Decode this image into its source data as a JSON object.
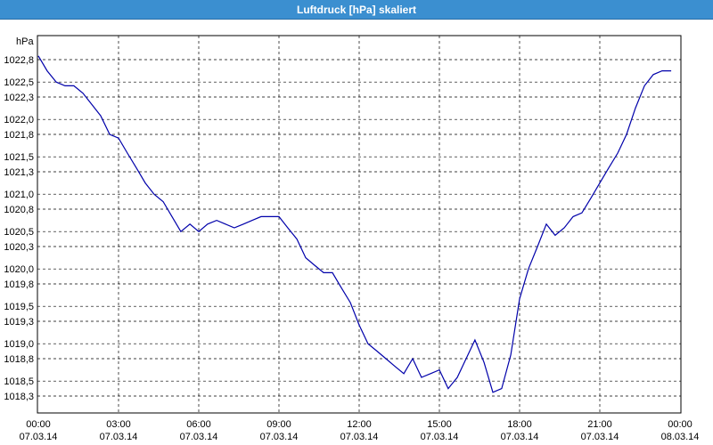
{
  "window": {
    "title": "Luftdruck [hPa] skaliert"
  },
  "chart_data": {
    "type": "line",
    "title": "Luftdruck [hPa] skaliert",
    "ylabel": "hPa",
    "xlabel": "",
    "ylim": [
      1018.0,
      1023.0
    ],
    "grid": true,
    "x_unit": "hours since 07.03.14 00:00",
    "xlim": [
      0,
      24
    ],
    "y_ticks": [
      "1022,8",
      "1022,5",
      "1022,3",
      "1022,0",
      "1021,8",
      "1021,5",
      "1021,3",
      "1021,0",
      "1020,8",
      "1020,5",
      "1020,3",
      "1020,0",
      "1019,8",
      "1019,5",
      "1019,3",
      "1019,0",
      "1018,8",
      "1018,5",
      "1018,3"
    ],
    "y_tick_values": [
      1022.8,
      1022.5,
      1022.3,
      1022.0,
      1021.8,
      1021.5,
      1021.3,
      1021.0,
      1020.8,
      1020.5,
      1020.3,
      1020.0,
      1019.8,
      1019.5,
      1019.3,
      1019.0,
      1018.8,
      1018.5,
      1018.3
    ],
    "x_ticks": [
      {
        "time": "00:00",
        "date": "07.03.14",
        "hour": 0
      },
      {
        "time": "03:00",
        "date": "07.03.14",
        "hour": 3
      },
      {
        "time": "06:00",
        "date": "07.03.14",
        "hour": 6
      },
      {
        "time": "09:00",
        "date": "07.03.14",
        "hour": 9
      },
      {
        "time": "12:00",
        "date": "07.03.14",
        "hour": 12
      },
      {
        "time": "15:00",
        "date": "07.03.14",
        "hour": 15
      },
      {
        "time": "18:00",
        "date": "07.03.14",
        "hour": 18
      },
      {
        "time": "21:00",
        "date": "07.03.14",
        "hour": 21
      },
      {
        "time": "00:00",
        "date": "08.03.14",
        "hour": 24
      }
    ],
    "series": [
      {
        "name": "",
        "color": "#0000aa",
        "x": [
          0.0,
          0.33,
          0.67,
          1.0,
          1.33,
          1.67,
          2.0,
          2.33,
          2.67,
          3.0,
          3.33,
          3.67,
          4.0,
          4.33,
          4.67,
          5.0,
          5.33,
          5.67,
          6.0,
          6.33,
          6.67,
          7.0,
          7.33,
          7.67,
          8.0,
          8.33,
          8.67,
          9.0,
          9.33,
          9.67,
          10.0,
          10.33,
          10.67,
          11.0,
          11.33,
          11.67,
          12.0,
          12.33,
          12.67,
          13.0,
          13.33,
          13.67,
          14.0,
          14.33,
          14.67,
          15.0,
          15.33,
          15.67,
          16.0,
          16.33,
          16.67,
          17.0,
          17.33,
          17.67,
          18.0,
          18.33,
          18.67,
          19.0,
          19.33,
          19.67,
          20.0,
          20.33,
          20.67,
          21.0,
          21.33,
          21.67,
          22.0,
          22.33,
          22.67,
          23.0,
          23.33,
          23.67
        ],
        "y": [
          1022.85,
          1022.65,
          1022.5,
          1022.45,
          1022.45,
          1022.35,
          1022.2,
          1022.05,
          1021.8,
          1021.75,
          1021.55,
          1021.35,
          1021.15,
          1021.0,
          1020.9,
          1020.7,
          1020.5,
          1020.6,
          1020.5,
          1020.6,
          1020.65,
          1020.6,
          1020.55,
          1020.6,
          1020.65,
          1020.7,
          1020.7,
          1020.7,
          1020.55,
          1020.4,
          1020.15,
          1020.05,
          1019.95,
          1019.95,
          1019.75,
          1019.55,
          1019.25,
          1019.0,
          1018.9,
          1018.8,
          1018.7,
          1018.6,
          1018.8,
          1018.55,
          1018.6,
          1018.65,
          1018.4,
          1018.55,
          1018.8,
          1019.05,
          1018.75,
          1018.35,
          1018.4,
          1018.85,
          1019.6,
          1020.0,
          1020.3,
          1020.6,
          1020.45,
          1020.55,
          1020.7,
          1020.75,
          1020.95,
          1021.15,
          1021.35,
          1021.55,
          1021.8,
          1022.15,
          1022.45,
          1022.6,
          1022.65,
          1022.65
        ]
      }
    ]
  }
}
